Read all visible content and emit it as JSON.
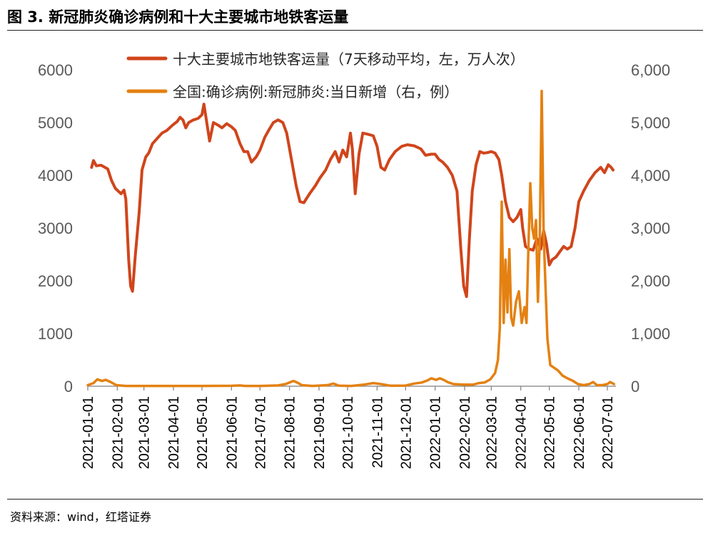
{
  "figure": {
    "title": "图 3. 新冠肺炎确诊病例和十大主要城市地铁客运量",
    "source": "资料来源：wind，红塔证券"
  },
  "colors": {
    "metro": "#D0451B",
    "cases": "#E48112",
    "axis_text": "#595959"
  },
  "chart_data": {
    "type": "line",
    "x_ticks": [
      "2021-01-01",
      "2021-02-01",
      "2021-03-01",
      "2021-04-01",
      "2021-05-01",
      "2021-06-01",
      "2021-07-01",
      "2021-08-01",
      "2021-09-01",
      "2021-10-01",
      "2021-11-01",
      "2021-12-01",
      "2022-01-01",
      "2022-02-01",
      "2022-03-01",
      "2022-04-01",
      "2022-05-01",
      "2022-06-01",
      "2022-07-01"
    ],
    "y_left": {
      "range": [
        0,
        6000
      ],
      "ticks": [
        "0",
        "1000",
        "2000",
        "3000",
        "4000",
        "5000",
        "6000"
      ]
    },
    "y_right": {
      "range": [
        0,
        6000
      ],
      "ticks": [
        "0",
        "1,000",
        "2,000",
        "3,000",
        "4,000",
        "5,000",
        "6,000"
      ]
    },
    "grid": false,
    "legend_position": "top-center",
    "series": [
      {
        "name": "十大主要城市地铁客运量（7天移动平均，左，万人次）",
        "axis": "left",
        "points": [
          [
            "2021-01-05",
            4150
          ],
          [
            "2021-01-07",
            4280
          ],
          [
            "2021-01-10",
            4180
          ],
          [
            "2021-01-15",
            4190
          ],
          [
            "2021-01-22",
            4120
          ],
          [
            "2021-01-26",
            3900
          ],
          [
            "2021-01-30",
            3750
          ],
          [
            "2021-02-05",
            3650
          ],
          [
            "2021-02-08",
            3720
          ],
          [
            "2021-02-10",
            3550
          ],
          [
            "2021-02-13",
            2400
          ],
          [
            "2021-02-15",
            1900
          ],
          [
            "2021-02-17",
            1800
          ],
          [
            "2021-02-20",
            2500
          ],
          [
            "2021-02-24",
            3300
          ],
          [
            "2021-02-27",
            4100
          ],
          [
            "2021-03-03",
            4350
          ],
          [
            "2021-03-06",
            4420
          ],
          [
            "2021-03-10",
            4600
          ],
          [
            "2021-03-15",
            4700
          ],
          [
            "2021-03-20",
            4800
          ],
          [
            "2021-03-25",
            4850
          ],
          [
            "2021-03-31",
            4950
          ],
          [
            "2021-04-05",
            5020
          ],
          [
            "2021-04-08",
            5100
          ],
          [
            "2021-04-11",
            5050
          ],
          [
            "2021-04-14",
            4900
          ],
          [
            "2021-04-17",
            5000
          ],
          [
            "2021-04-22",
            5050
          ],
          [
            "2021-04-27",
            5080
          ],
          [
            "2021-05-01",
            5150
          ],
          [
            "2021-05-03",
            5350
          ],
          [
            "2021-05-06",
            5000
          ],
          [
            "2021-05-09",
            4650
          ],
          [
            "2021-05-13",
            5000
          ],
          [
            "2021-05-18",
            4950
          ],
          [
            "2021-05-22",
            4900
          ],
          [
            "2021-05-27",
            4980
          ],
          [
            "2021-06-01",
            4920
          ],
          [
            "2021-06-05",
            4850
          ],
          [
            "2021-06-10",
            4600
          ],
          [
            "2021-06-14",
            4450
          ],
          [
            "2021-06-18",
            4450
          ],
          [
            "2021-06-22",
            4250
          ],
          [
            "2021-06-27",
            4350
          ],
          [
            "2021-07-01",
            4480
          ],
          [
            "2021-07-06",
            4720
          ],
          [
            "2021-07-10",
            4850
          ],
          [
            "2021-07-15",
            5000
          ],
          [
            "2021-07-20",
            5050
          ],
          [
            "2021-07-25",
            5000
          ],
          [
            "2021-07-29",
            4800
          ],
          [
            "2021-08-01",
            4500
          ],
          [
            "2021-08-04",
            4200
          ],
          [
            "2021-08-08",
            3800
          ],
          [
            "2021-08-12",
            3500
          ],
          [
            "2021-08-16",
            3480
          ],
          [
            "2021-08-22",
            3650
          ],
          [
            "2021-08-28",
            3800
          ],
          [
            "2021-09-02",
            3950
          ],
          [
            "2021-09-08",
            4100
          ],
          [
            "2021-09-13",
            4300
          ],
          [
            "2021-09-18",
            4450
          ],
          [
            "2021-09-22",
            4250
          ],
          [
            "2021-09-26",
            4480
          ],
          [
            "2021-09-30",
            4350
          ],
          [
            "2021-10-04",
            4800
          ],
          [
            "2021-10-06",
            4500
          ],
          [
            "2021-10-09",
            3650
          ],
          [
            "2021-10-13",
            4400
          ],
          [
            "2021-10-17",
            4800
          ],
          [
            "2021-10-22",
            4780
          ],
          [
            "2021-10-28",
            4750
          ],
          [
            "2021-11-01",
            4550
          ],
          [
            "2021-11-05",
            4150
          ],
          [
            "2021-11-09",
            4100
          ],
          [
            "2021-11-14",
            4300
          ],
          [
            "2021-11-20",
            4450
          ],
          [
            "2021-11-27",
            4550
          ],
          [
            "2021-12-03",
            4580
          ],
          [
            "2021-12-10",
            4560
          ],
          [
            "2021-12-17",
            4500
          ],
          [
            "2021-12-22",
            4380
          ],
          [
            "2021-12-28",
            4400
          ],
          [
            "2022-01-01",
            4400
          ],
          [
            "2022-01-05",
            4300
          ],
          [
            "2022-01-09",
            4250
          ],
          [
            "2022-01-14",
            4150
          ],
          [
            "2022-01-19",
            4000
          ],
          [
            "2022-01-24",
            3700
          ],
          [
            "2022-01-28",
            2600
          ],
          [
            "2022-01-31",
            1900
          ],
          [
            "2022-02-03",
            1700
          ],
          [
            "2022-02-06",
            2800
          ],
          [
            "2022-02-09",
            3700
          ],
          [
            "2022-02-13",
            4200
          ],
          [
            "2022-02-17",
            4450
          ],
          [
            "2022-02-21",
            4420
          ],
          [
            "2022-02-25",
            4430
          ],
          [
            "2022-03-01",
            4450
          ],
          [
            "2022-03-05",
            4420
          ],
          [
            "2022-03-09",
            4300
          ],
          [
            "2022-03-12",
            4000
          ],
          [
            "2022-03-16",
            3500
          ],
          [
            "2022-03-20",
            3200
          ],
          [
            "2022-03-24",
            3120
          ],
          [
            "2022-03-28",
            3200
          ],
          [
            "2022-04-01",
            3350
          ],
          [
            "2022-04-03",
            3000
          ],
          [
            "2022-04-06",
            2650
          ],
          [
            "2022-04-10",
            2600
          ],
          [
            "2022-04-14",
            2580
          ],
          [
            "2022-04-18",
            2800
          ],
          [
            "2022-04-22",
            2600
          ],
          [
            "2022-04-25",
            2950
          ],
          [
            "2022-04-28",
            2700
          ],
          [
            "2022-05-01",
            2300
          ],
          [
            "2022-05-04",
            2400
          ],
          [
            "2022-05-08",
            2450
          ],
          [
            "2022-05-12",
            2550
          ],
          [
            "2022-05-16",
            2650
          ],
          [
            "2022-05-20",
            2600
          ],
          [
            "2022-05-24",
            2650
          ],
          [
            "2022-05-28",
            3000
          ],
          [
            "2022-06-01",
            3500
          ],
          [
            "2022-06-06",
            3700
          ],
          [
            "2022-06-12",
            3900
          ],
          [
            "2022-06-18",
            4050
          ],
          [
            "2022-06-24",
            4150
          ],
          [
            "2022-06-28",
            4050
          ],
          [
            "2022-07-02",
            4200
          ],
          [
            "2022-07-05",
            4150
          ],
          [
            "2022-07-07",
            4100
          ]
        ]
      },
      {
        "name": "全国:确诊病例:新冠肺炎:当日新增（右，例）",
        "axis": "right",
        "points": [
          [
            "2021-01-01",
            20
          ],
          [
            "2021-01-07",
            60
          ],
          [
            "2021-01-11",
            130
          ],
          [
            "2021-01-16",
            100
          ],
          [
            "2021-01-20",
            120
          ],
          [
            "2021-01-25",
            80
          ],
          [
            "2021-01-31",
            20
          ],
          [
            "2021-02-10",
            5
          ],
          [
            "2021-03-01",
            5
          ],
          [
            "2021-04-01",
            5
          ],
          [
            "2021-05-01",
            5
          ],
          [
            "2021-06-01",
            8
          ],
          [
            "2021-06-10",
            15
          ],
          [
            "2021-06-15",
            5
          ],
          [
            "2021-07-01",
            5
          ],
          [
            "2021-07-20",
            15
          ],
          [
            "2021-07-28",
            40
          ],
          [
            "2021-08-01",
            70
          ],
          [
            "2021-08-05",
            100
          ],
          [
            "2021-08-09",
            70
          ],
          [
            "2021-08-14",
            20
          ],
          [
            "2021-08-25",
            5
          ],
          [
            "2021-09-10",
            20
          ],
          [
            "2021-09-16",
            50
          ],
          [
            "2021-09-22",
            10
          ],
          [
            "2021-10-05",
            5
          ],
          [
            "2021-10-18",
            30
          ],
          [
            "2021-10-28",
            60
          ],
          [
            "2021-11-05",
            40
          ],
          [
            "2021-11-15",
            10
          ],
          [
            "2021-11-30",
            10
          ],
          [
            "2021-12-10",
            50
          ],
          [
            "2021-12-18",
            70
          ],
          [
            "2021-12-24",
            110
          ],
          [
            "2021-12-28",
            150
          ],
          [
            "2022-01-02",
            120
          ],
          [
            "2022-01-06",
            150
          ],
          [
            "2022-01-10",
            120
          ],
          [
            "2022-01-14",
            80
          ],
          [
            "2022-01-20",
            40
          ],
          [
            "2022-01-31",
            30
          ],
          [
            "2022-02-10",
            30
          ],
          [
            "2022-02-16",
            60
          ],
          [
            "2022-02-22",
            70
          ],
          [
            "2022-02-28",
            130
          ],
          [
            "2022-03-05",
            250
          ],
          [
            "2022-03-08",
            500
          ],
          [
            "2022-03-10",
            1100
          ],
          [
            "2022-03-12",
            3500
          ],
          [
            "2022-03-14",
            1200
          ],
          [
            "2022-03-16",
            2400
          ],
          [
            "2022-03-18",
            1400
          ],
          [
            "2022-03-20",
            2600
          ],
          [
            "2022-03-22",
            1300
          ],
          [
            "2022-03-24",
            1150
          ],
          [
            "2022-03-27",
            1600
          ],
          [
            "2022-03-30",
            1800
          ],
          [
            "2022-04-02",
            1200
          ],
          [
            "2022-04-05",
            1500
          ],
          [
            "2022-04-07",
            1200
          ],
          [
            "2022-04-09",
            2600
          ],
          [
            "2022-04-11",
            3850
          ],
          [
            "2022-04-13",
            3000
          ],
          [
            "2022-04-15",
            2800
          ],
          [
            "2022-04-17",
            3150
          ],
          [
            "2022-04-19",
            1600
          ],
          [
            "2022-04-21",
            2800
          ],
          [
            "2022-04-23",
            5600
          ],
          [
            "2022-04-25",
            2900
          ],
          [
            "2022-04-27",
            1900
          ],
          [
            "2022-04-29",
            900
          ],
          [
            "2022-05-02",
            400
          ],
          [
            "2022-05-06",
            350
          ],
          [
            "2022-05-10",
            300
          ],
          [
            "2022-05-15",
            200
          ],
          [
            "2022-05-20",
            150
          ],
          [
            "2022-05-26",
            100
          ],
          [
            "2022-05-31",
            40
          ],
          [
            "2022-06-06",
            20
          ],
          [
            "2022-06-12",
            40
          ],
          [
            "2022-06-16",
            80
          ],
          [
            "2022-06-20",
            20
          ],
          [
            "2022-06-26",
            20
          ],
          [
            "2022-07-01",
            40
          ],
          [
            "2022-07-04",
            80
          ],
          [
            "2022-07-06",
            60
          ],
          [
            "2022-07-08",
            40
          ]
        ]
      }
    ]
  }
}
